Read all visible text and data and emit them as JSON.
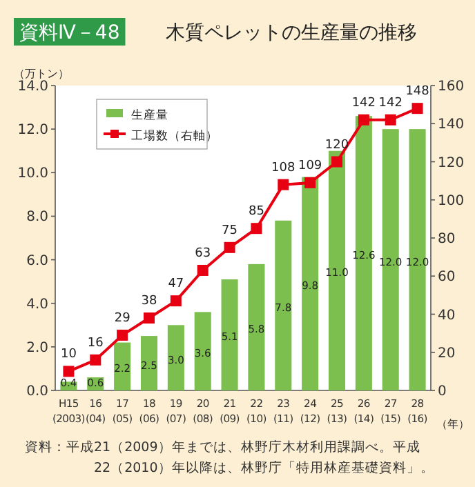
{
  "chart_data": {
    "type": "bar",
    "title": "木質ペレットの生産量の推移",
    "ylabel": "（万トン）",
    "xlabel": "（年）",
    "annotations": [
      "資料Ⅳ－48",
      "資料：平成21（2009）年までは、林野庁木材利用課調べ。平成22（2010）年以降は、林野庁「特用林産基礎資料」。"
    ],
    "categories": [
      "H15\n(2003)",
      "16\n(04)",
      "17\n(05)",
      "18\n(06)",
      "19\n(07)",
      "20\n(08)",
      "21\n(09)",
      "22\n(10)",
      "23\n(11)",
      "24\n(12)",
      "25\n(13)",
      "26\n(14)",
      "27\n(15)",
      "28\n(16)"
    ],
    "series": [
      {
        "name": "生産量",
        "color": "#7dbf4f",
        "values": [
          0.4,
          0.6,
          2.2,
          2.5,
          3.0,
          3.6,
          5.1,
          5.8,
          7.8,
          9.8,
          11.0,
          12.6,
          12.0,
          12.0
        ],
        "value_labels": [
          "0.4",
          "0.6",
          "2.2",
          "2.5",
          "3.0",
          "3.6",
          "5.1",
          "5.8",
          "7.8",
          "9.8",
          "11.0",
          "12.6",
          "12.0",
          "12.0"
        ]
      },
      {
        "name": "工場数（右軸）",
        "type": "line",
        "axis": "y2",
        "color": "#e60012",
        "marker": "square",
        "values": [
          10,
          16,
          29,
          38,
          47,
          63,
          75,
          85,
          108,
          109,
          120,
          142,
          142,
          148
        ]
      }
    ],
    "ylim": [
      0,
      14
    ],
    "yticks": [
      {
        "value": 0,
        "label": "0.0"
      },
      {
        "value": 2,
        "label": "2.0"
      },
      {
        "value": 4,
        "label": "4.0"
      },
      {
        "value": 6,
        "label": "6.0"
      },
      {
        "value": 8,
        "label": "8.0"
      },
      {
        "value": 10,
        "label": "10.0"
      },
      {
        "value": 12,
        "label": "12.0"
      },
      {
        "value": 14,
        "label": "14.0"
      }
    ],
    "y2lim": [
      0,
      160
    ],
    "y2ticks": [
      0,
      20,
      40,
      60,
      80,
      100,
      120,
      140,
      160
    ],
    "data_labels": true,
    "legend": "top left",
    "grid": false
  }
}
